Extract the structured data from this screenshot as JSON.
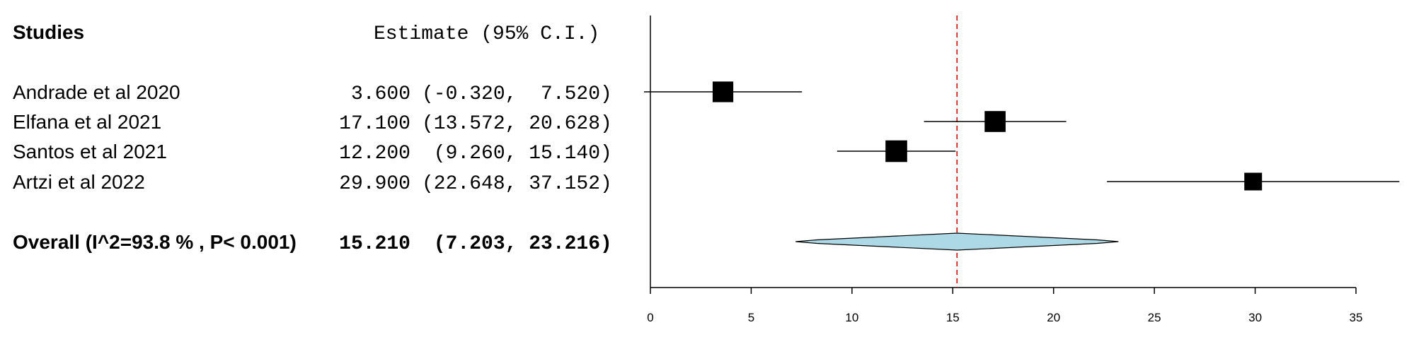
{
  "header": {
    "studies_label": "Studies",
    "estimate_label": "Estimate (95% C.I.)"
  },
  "chart_data": {
    "type": "forest",
    "studies": [
      {
        "name": "Andrade et al 2020",
        "estimate": 3.6,
        "ci_low": -0.32,
        "ci_high": 7.52,
        "estimate_text": "3.600",
        "ci_text": "(-0.320,  7.520)",
        "weight": 0.8
      },
      {
        "name": "Elfana et al 2021",
        "estimate": 17.1,
        "ci_low": 13.572,
        "ci_high": 20.628,
        "estimate_text": "17.100",
        "ci_text": "(13.572, 20.628)",
        "weight": 0.83
      },
      {
        "name": "Santos et al 2021",
        "estimate": 12.2,
        "ci_low": 9.26,
        "ci_high": 15.14,
        "estimate_text": "12.200",
        "ci_text": " (9.260, 15.140)",
        "weight": 0.9
      },
      {
        "name": "Artzi et al 2022",
        "estimate": 29.9,
        "ci_low": 22.648,
        "ci_high": 37.152,
        "estimate_text": "29.900",
        "ci_text": "(22.648, 37.152)",
        "weight": 0.5
      }
    ],
    "overall": {
      "label": "Overall (I^2=93.8 % , P< 0.001)",
      "estimate": 15.21,
      "ci_low": 7.203,
      "ci_high": 23.216,
      "estimate_text": "15.210",
      "ci_text": " (7.203, 23.216)"
    },
    "xlim": [
      0,
      35
    ],
    "x_ticks": [
      0,
      5,
      10,
      15,
      20,
      25,
      30,
      35
    ],
    "reference_line": 15.21,
    "colors": {
      "box": "#000000",
      "diamond_fill": "#add8e6",
      "reference_line": "#cc0000"
    }
  }
}
